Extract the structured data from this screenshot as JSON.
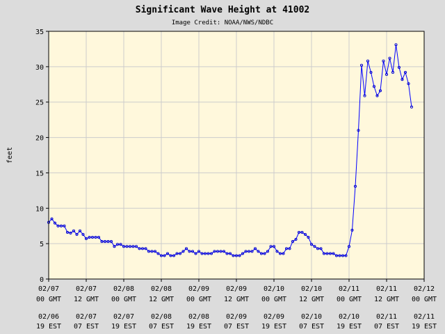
{
  "chart_data": {
    "type": "line",
    "title": "Significant Wave Height at 41002",
    "subtitle": "Image Credit: NOAA/NWS/NDBC",
    "ylabel": "feet",
    "xlabel": "",
    "ylim": [
      0,
      35
    ],
    "yticks": [
      0,
      5,
      10,
      15,
      20,
      25,
      30,
      35
    ],
    "xlim": [
      0,
      120
    ],
    "xticks": [
      {
        "x": 0,
        "gmt_date": "02/07",
        "gmt_time": "00 GMT",
        "est_date": "02/06",
        "est_time": "19 EST"
      },
      {
        "x": 12,
        "gmt_date": "02/07",
        "gmt_time": "12 GMT",
        "est_date": "02/07",
        "est_time": "07 EST"
      },
      {
        "x": 24,
        "gmt_date": "02/08",
        "gmt_time": "00 GMT",
        "est_date": "02/07",
        "est_time": "19 EST"
      },
      {
        "x": 36,
        "gmt_date": "02/08",
        "gmt_time": "12 GMT",
        "est_date": "02/08",
        "est_time": "07 EST"
      },
      {
        "x": 48,
        "gmt_date": "02/09",
        "gmt_time": "00 GMT",
        "est_date": "02/08",
        "est_time": "19 EST"
      },
      {
        "x": 60,
        "gmt_date": "02/09",
        "gmt_time": "12 GMT",
        "est_date": "02/09",
        "est_time": "07 EST"
      },
      {
        "x": 72,
        "gmt_date": "02/10",
        "gmt_time": "00 GMT",
        "est_date": "02/09",
        "est_time": "19 EST"
      },
      {
        "x": 84,
        "gmt_date": "02/10",
        "gmt_time": "12 GMT",
        "est_date": "02/10",
        "est_time": "07 EST"
      },
      {
        "x": 96,
        "gmt_date": "02/11",
        "gmt_time": "00 GMT",
        "est_date": "02/10",
        "est_time": "19 EST"
      },
      {
        "x": 108,
        "gmt_date": "02/11",
        "gmt_time": "12 GMT",
        "est_date": "02/11",
        "est_time": "07 EST"
      },
      {
        "x": 120,
        "gmt_date": "02/12",
        "gmt_time": "00 GMT",
        "est_date": "02/11",
        "est_time": "19 EST"
      }
    ],
    "grid": true,
    "colors": {
      "background": "#dcdcdc",
      "plot": "#fff8dc",
      "grid": "#cccccc",
      "line": "#0000ff",
      "marker": "#0000cc"
    },
    "series": [
      {
        "x": [
          0,
          1,
          2,
          3,
          4,
          5,
          6,
          7,
          8,
          9,
          10,
          11,
          12,
          13,
          14,
          15,
          16,
          17,
          18,
          19,
          20,
          21,
          22,
          23,
          24,
          25,
          26,
          27,
          28,
          29,
          30,
          31,
          32,
          33,
          34,
          35,
          36,
          37,
          38,
          39,
          40,
          41,
          42,
          43,
          44,
          45,
          46,
          47,
          48,
          49,
          50,
          51,
          52,
          53,
          54,
          55,
          56,
          57,
          58,
          59,
          60,
          61,
          62,
          63,
          64,
          65,
          66,
          67,
          68,
          69,
          70,
          71,
          72,
          73,
          74,
          75,
          76,
          77,
          78,
          79,
          80,
          81,
          82,
          83,
          84,
          85,
          86,
          87,
          88,
          89,
          90,
          91,
          92,
          93,
          94,
          95,
          96,
          97,
          98,
          99,
          100,
          101,
          102,
          103,
          104,
          105,
          106,
          107,
          108,
          109,
          110,
          111,
          112,
          113,
          114,
          115,
          116
        ],
        "y": [
          8.0,
          8.5,
          7.9,
          7.5,
          7.5,
          7.5,
          6.6,
          6.5,
          6.8,
          6.3,
          6.8,
          6.3,
          5.7,
          5.9,
          5.9,
          5.9,
          5.9,
          5.3,
          5.3,
          5.3,
          5.3,
          4.6,
          4.9,
          4.9,
          4.6,
          4.6,
          4.6,
          4.6,
          4.6,
          4.3,
          4.3,
          4.3,
          3.9,
          3.9,
          3.9,
          3.6,
          3.3,
          3.3,
          3.6,
          3.3,
          3.3,
          3.6,
          3.6,
          3.9,
          4.3,
          3.9,
          3.9,
          3.6,
          3.9,
          3.6,
          3.6,
          3.6,
          3.6,
          3.9,
          3.9,
          3.9,
          3.9,
          3.6,
          3.6,
          3.3,
          3.3,
          3.3,
          3.6,
          3.9,
          3.9,
          3.9,
          4.3,
          3.9,
          3.6,
          3.6,
          3.9,
          4.6,
          4.6,
          3.9,
          3.6,
          3.6,
          4.3,
          4.3,
          5.3,
          5.6,
          6.6,
          6.6,
          6.3,
          5.9,
          4.9,
          4.6,
          4.3,
          4.3,
          3.6,
          3.6,
          3.6,
          3.6,
          3.3,
          3.3,
          3.3,
          3.3,
          4.6,
          6.9,
          13.1,
          21.0,
          30.2,
          25.9,
          30.8,
          29.2,
          27.2,
          25.9,
          26.6,
          30.8,
          28.9,
          31.2,
          29.2,
          33.1,
          29.9,
          28.2,
          29.2,
          27.6,
          24.3
        ]
      }
    ]
  }
}
